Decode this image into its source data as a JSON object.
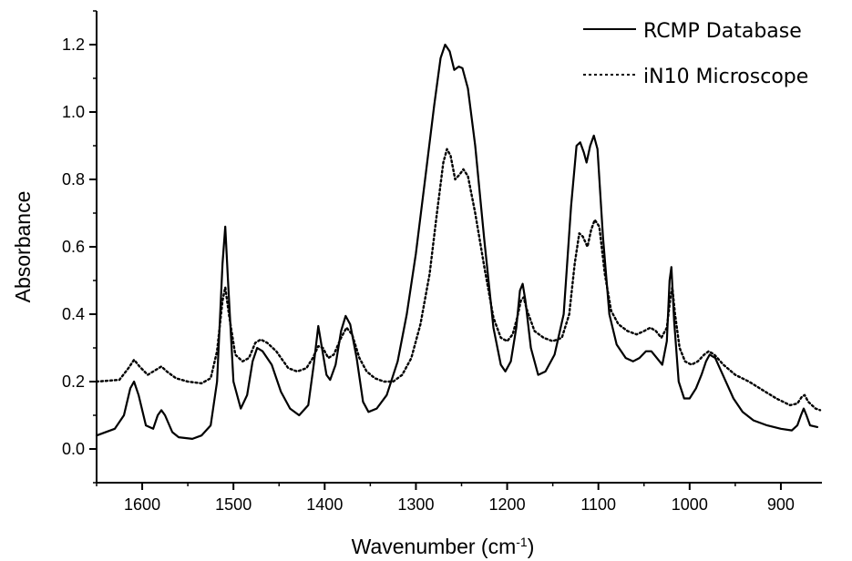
{
  "chart_data": {
    "type": "line",
    "xlabel": "Wavenumber (cm",
    "xlabel_sup": "-1",
    "xlabel_close": ")",
    "ylabel": "Absorbance",
    "xlim": [
      1650,
      855
    ],
    "ylim": [
      -0.1,
      1.3
    ],
    "x_ticks": [
      "1600",
      "1500",
      "1400",
      "1300",
      "1200",
      "1100",
      "1000",
      "900"
    ],
    "y_ticks": [
      "0.0",
      "0.2",
      "0.4",
      "0.6",
      "0.8",
      "1.0",
      "1.2"
    ],
    "legend_position": "top-right",
    "series": [
      {
        "name": "RCMP Database",
        "style": "solid",
        "color": "#000000",
        "points": [
          [
            1650,
            0.04
          ],
          [
            1630,
            0.06
          ],
          [
            1620,
            0.1
          ],
          [
            1613,
            0.18
          ],
          [
            1609,
            0.2
          ],
          [
            1604,
            0.16
          ],
          [
            1596,
            0.07
          ],
          [
            1588,
            0.06
          ],
          [
            1583,
            0.1
          ],
          [
            1579,
            0.115
          ],
          [
            1575,
            0.1
          ],
          [
            1567,
            0.05
          ],
          [
            1560,
            0.035
          ],
          [
            1545,
            0.03
          ],
          [
            1535,
            0.04
          ],
          [
            1525,
            0.07
          ],
          [
            1518,
            0.2
          ],
          [
            1512,
            0.55
          ],
          [
            1509,
            0.66
          ],
          [
            1506,
            0.5
          ],
          [
            1500,
            0.2
          ],
          [
            1492,
            0.12
          ],
          [
            1485,
            0.16
          ],
          [
            1479,
            0.26
          ],
          [
            1474,
            0.3
          ],
          [
            1468,
            0.29
          ],
          [
            1458,
            0.25
          ],
          [
            1448,
            0.17
          ],
          [
            1438,
            0.12
          ],
          [
            1428,
            0.1
          ],
          [
            1418,
            0.13
          ],
          [
            1412,
            0.25
          ],
          [
            1407,
            0.365
          ],
          [
            1403,
            0.3
          ],
          [
            1398,
            0.22
          ],
          [
            1394,
            0.205
          ],
          [
            1388,
            0.25
          ],
          [
            1382,
            0.35
          ],
          [
            1377,
            0.395
          ],
          [
            1372,
            0.37
          ],
          [
            1365,
            0.27
          ],
          [
            1358,
            0.14
          ],
          [
            1352,
            0.11
          ],
          [
            1343,
            0.12
          ],
          [
            1332,
            0.16
          ],
          [
            1320,
            0.26
          ],
          [
            1310,
            0.4
          ],
          [
            1300,
            0.58
          ],
          [
            1290,
            0.8
          ],
          [
            1280,
            1.02
          ],
          [
            1273,
            1.16
          ],
          [
            1268,
            1.2
          ],
          [
            1263,
            1.18
          ],
          [
            1258,
            1.125
          ],
          [
            1253,
            1.135
          ],
          [
            1249,
            1.13
          ],
          [
            1243,
            1.07
          ],
          [
            1235,
            0.9
          ],
          [
            1225,
            0.62
          ],
          [
            1215,
            0.36
          ],
          [
            1207,
            0.25
          ],
          [
            1202,
            0.23
          ],
          [
            1196,
            0.26
          ],
          [
            1190,
            0.36
          ],
          [
            1186,
            0.47
          ],
          [
            1183,
            0.49
          ],
          [
            1180,
            0.44
          ],
          [
            1174,
            0.3
          ],
          [
            1166,
            0.22
          ],
          [
            1158,
            0.23
          ],
          [
            1148,
            0.28
          ],
          [
            1138,
            0.4
          ],
          [
            1130,
            0.72
          ],
          [
            1124,
            0.9
          ],
          [
            1120,
            0.91
          ],
          [
            1116,
            0.88
          ],
          [
            1113,
            0.85
          ],
          [
            1109,
            0.9
          ],
          [
            1105,
            0.93
          ],
          [
            1101,
            0.89
          ],
          [
            1095,
            0.63
          ],
          [
            1088,
            0.4
          ],
          [
            1080,
            0.31
          ],
          [
            1070,
            0.27
          ],
          [
            1062,
            0.26
          ],
          [
            1055,
            0.27
          ],
          [
            1048,
            0.29
          ],
          [
            1042,
            0.29
          ],
          [
            1036,
            0.27
          ],
          [
            1030,
            0.25
          ],
          [
            1025,
            0.32
          ],
          [
            1022,
            0.5
          ],
          [
            1020,
            0.54
          ],
          [
            1017,
            0.38
          ],
          [
            1012,
            0.2
          ],
          [
            1006,
            0.15
          ],
          [
            1000,
            0.15
          ],
          [
            993,
            0.18
          ],
          [
            987,
            0.22
          ],
          [
            982,
            0.26
          ],
          [
            978,
            0.28
          ],
          [
            972,
            0.27
          ],
          [
            962,
            0.21
          ],
          [
            952,
            0.15
          ],
          [
            942,
            0.11
          ],
          [
            930,
            0.085
          ],
          [
            915,
            0.07
          ],
          [
            900,
            0.06
          ],
          [
            888,
            0.055
          ],
          [
            882,
            0.07
          ],
          [
            878,
            0.1
          ],
          [
            875,
            0.12
          ],
          [
            872,
            0.1
          ],
          [
            868,
            0.07
          ],
          [
            860,
            0.065
          ]
        ]
      },
      {
        "name": "iN10 Microscope",
        "style": "dotted",
        "color": "#000000",
        "points": [
          [
            1650,
            0.2
          ],
          [
            1625,
            0.205
          ],
          [
            1615,
            0.24
          ],
          [
            1609,
            0.265
          ],
          [
            1603,
            0.245
          ],
          [
            1594,
            0.22
          ],
          [
            1585,
            0.235
          ],
          [
            1579,
            0.245
          ],
          [
            1573,
            0.23
          ],
          [
            1563,
            0.21
          ],
          [
            1550,
            0.2
          ],
          [
            1535,
            0.195
          ],
          [
            1525,
            0.21
          ],
          [
            1518,
            0.29
          ],
          [
            1512,
            0.44
          ],
          [
            1509,
            0.48
          ],
          [
            1505,
            0.4
          ],
          [
            1498,
            0.28
          ],
          [
            1490,
            0.26
          ],
          [
            1483,
            0.27
          ],
          [
            1476,
            0.315
          ],
          [
            1470,
            0.325
          ],
          [
            1463,
            0.315
          ],
          [
            1453,
            0.29
          ],
          [
            1440,
            0.24
          ],
          [
            1430,
            0.23
          ],
          [
            1420,
            0.24
          ],
          [
            1413,
            0.27
          ],
          [
            1407,
            0.305
          ],
          [
            1402,
            0.3
          ],
          [
            1396,
            0.27
          ],
          [
            1390,
            0.28
          ],
          [
            1382,
            0.33
          ],
          [
            1376,
            0.36
          ],
          [
            1370,
            0.34
          ],
          [
            1362,
            0.27
          ],
          [
            1354,
            0.23
          ],
          [
            1345,
            0.21
          ],
          [
            1335,
            0.2
          ],
          [
            1325,
            0.2
          ],
          [
            1315,
            0.22
          ],
          [
            1305,
            0.27
          ],
          [
            1295,
            0.37
          ],
          [
            1285,
            0.52
          ],
          [
            1277,
            0.7
          ],
          [
            1270,
            0.85
          ],
          [
            1266,
            0.89
          ],
          [
            1262,
            0.87
          ],
          [
            1257,
            0.8
          ],
          [
            1252,
            0.815
          ],
          [
            1248,
            0.83
          ],
          [
            1243,
            0.81
          ],
          [
            1235,
            0.7
          ],
          [
            1225,
            0.54
          ],
          [
            1215,
            0.39
          ],
          [
            1207,
            0.33
          ],
          [
            1200,
            0.32
          ],
          [
            1194,
            0.34
          ],
          [
            1189,
            0.39
          ],
          [
            1185,
            0.44
          ],
          [
            1182,
            0.45
          ],
          [
            1178,
            0.41
          ],
          [
            1170,
            0.35
          ],
          [
            1160,
            0.33
          ],
          [
            1150,
            0.32
          ],
          [
            1140,
            0.33
          ],
          [
            1132,
            0.4
          ],
          [
            1126,
            0.55
          ],
          [
            1121,
            0.64
          ],
          [
            1117,
            0.63
          ],
          [
            1112,
            0.6
          ],
          [
            1108,
            0.65
          ],
          [
            1104,
            0.68
          ],
          [
            1099,
            0.66
          ],
          [
            1093,
            0.52
          ],
          [
            1086,
            0.41
          ],
          [
            1078,
            0.37
          ],
          [
            1068,
            0.35
          ],
          [
            1058,
            0.34
          ],
          [
            1050,
            0.35
          ],
          [
            1043,
            0.36
          ],
          [
            1037,
            0.35
          ],
          [
            1031,
            0.33
          ],
          [
            1025,
            0.36
          ],
          [
            1021,
            0.45
          ],
          [
            1019,
            0.48
          ],
          [
            1016,
            0.4
          ],
          [
            1011,
            0.3
          ],
          [
            1005,
            0.26
          ],
          [
            998,
            0.25
          ],
          [
            991,
            0.26
          ],
          [
            984,
            0.28
          ],
          [
            979,
            0.29
          ],
          [
            973,
            0.28
          ],
          [
            963,
            0.25
          ],
          [
            950,
            0.22
          ],
          [
            935,
            0.2
          ],
          [
            920,
            0.175
          ],
          [
            905,
            0.15
          ],
          [
            890,
            0.13
          ],
          [
            882,
            0.135
          ],
          [
            877,
            0.155
          ],
          [
            874,
            0.16
          ],
          [
            870,
            0.14
          ],
          [
            862,
            0.12
          ],
          [
            857,
            0.115
          ]
        ]
      }
    ]
  }
}
